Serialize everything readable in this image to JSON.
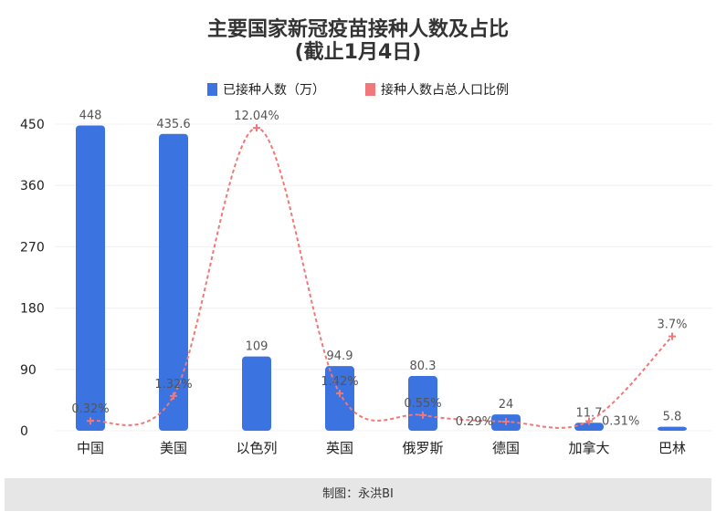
{
  "chart_data": {
    "type": "bar+line",
    "title": "主要国家新冠疫苗接种人数及占比",
    "subtitle": "(截止1月4日)",
    "categories": [
      "中国",
      "美国",
      "以色列",
      "英国",
      "俄罗斯",
      "德国",
      "加拿大",
      "巴林"
    ],
    "series": [
      {
        "name": "已接种人数（万）",
        "type": "bar",
        "color": "#3b73e0",
        "values": [
          448,
          435.6,
          109,
          94.9,
          80.3,
          24,
          11.7,
          5.8
        ],
        "labels": [
          "448",
          "435.6",
          "109",
          "94.9",
          "80.3",
          "24",
          "11.7",
          "5.8"
        ]
      },
      {
        "name": "接种人数占总人口比例",
        "type": "line",
        "style": "dashed-smooth",
        "color": "#f07878",
        "values": [
          0.32,
          1.32,
          12.04,
          1.42,
          0.55,
          0.29,
          0.31,
          3.7
        ],
        "labels": [
          "0.32%",
          "1.32%",
          "12.04%",
          "1.42%",
          "0.55%",
          "0.29%",
          "0.31%",
          "3.7%"
        ]
      }
    ],
    "y_left": {
      "ticks": [
        "0",
        "90",
        "180",
        "270",
        "360",
        "450"
      ],
      "range": [
        0,
        450
      ]
    },
    "grid": true,
    "legend_position": "top"
  },
  "footer": "制图：永洪BI"
}
